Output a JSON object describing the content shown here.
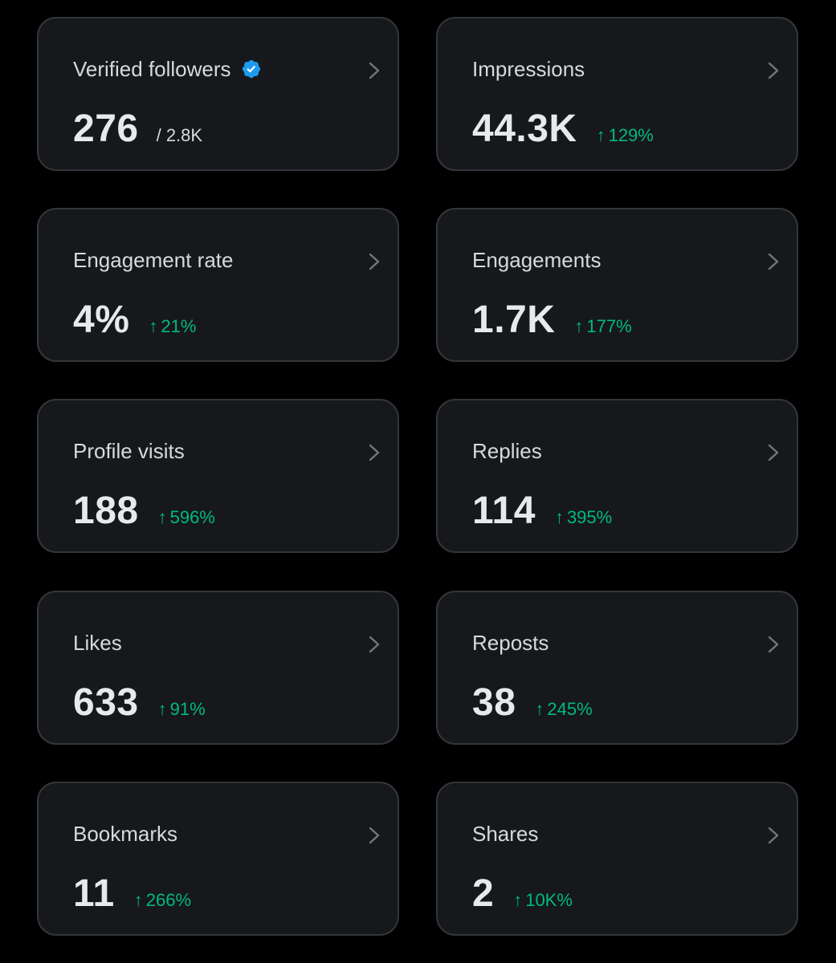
{
  "colors": {
    "background": "#000000",
    "card_background": "#16181c",
    "card_border": "#333639",
    "positive_change": "#00ba7c",
    "verified_badge": "#1d9bf0"
  },
  "icons": {
    "verified": "verified-badge-icon",
    "chevron": "chevron-right-icon",
    "up_arrow": "arrow-up-icon"
  },
  "metrics": [
    {
      "label": "Verified followers",
      "value": "276",
      "total": "/ 2.8K",
      "change": ""
    },
    {
      "label": "Impressions",
      "value": "44.3K",
      "change": "129%"
    },
    {
      "label": "Engagement rate",
      "value": "4%",
      "change": "21%"
    },
    {
      "label": "Engagements",
      "value": "1.7K",
      "change": "177%"
    },
    {
      "label": "Profile visits",
      "value": "188",
      "change": "596%"
    },
    {
      "label": "Replies",
      "value": "114",
      "change": "395%"
    },
    {
      "label": "Likes",
      "value": "633",
      "change": "91%"
    },
    {
      "label": "Reposts",
      "value": "38",
      "change": "245%"
    },
    {
      "label": "Bookmarks",
      "value": "11",
      "change": "266%"
    },
    {
      "label": "Shares",
      "value": "2",
      "change": "10K%"
    }
  ]
}
